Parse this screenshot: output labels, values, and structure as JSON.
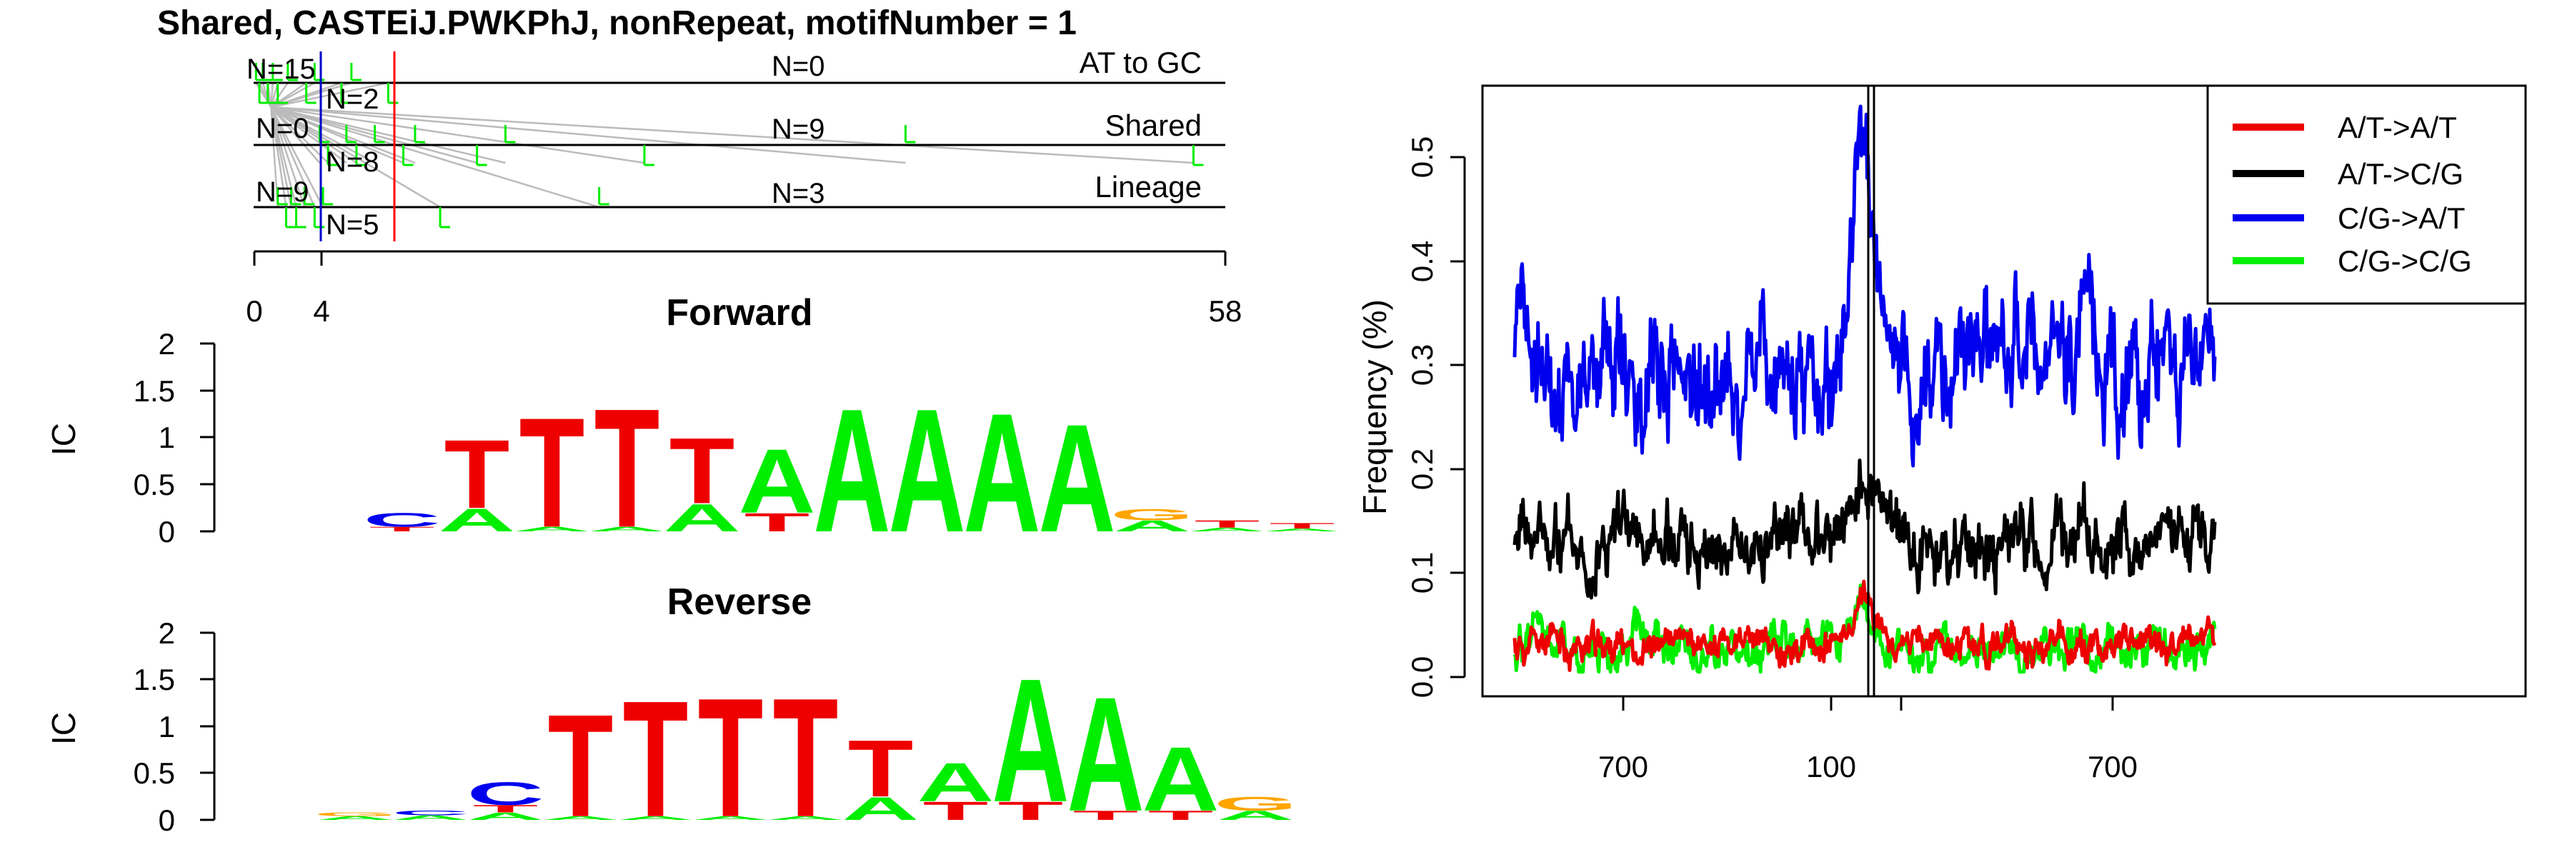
{
  "title": "Shared, CASTEiJ.PWKPhJ, nonRepeat, motifNumber = 1",
  "colors": {
    "A": "#00ee00",
    "C": "#0000ee",
    "G": "#ffa500",
    "T": "#ee0000",
    "connector": "#bbbbbb",
    "red_line": "#ff0000",
    "blue_line": "#0000cc"
  },
  "top_panel": {
    "tracks": [
      {
        "label": "AT to GC",
        "n_left": "N=15",
        "n_right": "N=2",
        "n_mid": "N=0"
      },
      {
        "label": "Shared",
        "n_left": "N=0",
        "n_right": "N=8",
        "n_mid": "N=9"
      },
      {
        "label": "Lineage",
        "n_left": "N=9",
        "n_right": "N=5",
        "n_mid": "N=3"
      }
    ],
    "axis": {
      "ticks": [
        "0",
        "4",
        "58"
      ],
      "min": 0,
      "max": 58,
      "tick_values": [
        0,
        4,
        58
      ]
    },
    "vlines": {
      "blue": 4,
      "red": 8.3
    },
    "marks": [
      [
        0.1,
        0.3,
        0.5,
        0.8,
        1.1,
        1.4,
        2.0,
        3.1,
        3.6,
        5.2,
        5.8,
        8.0
      ],
      [
        3.9,
        4.4,
        5.5,
        6.1,
        7.2,
        8.9,
        9.6,
        13.3,
        15.0,
        23.3,
        38.9,
        56.1
      ],
      [
        1.4,
        1.9,
        2.2,
        2.5,
        3.0,
        3.6,
        4.1,
        11.1,
        20.6
      ]
    ]
  },
  "logos": [
    {
      "title": "Forward",
      "ylabel": "IC",
      "yticks": [
        "2",
        "1.5",
        "1",
        "0.5",
        "0"
      ],
      "ymax": 2,
      "columns": [
        [
          [
            "T",
            0.05
          ],
          [
            "C",
            0.15
          ]
        ],
        [
          [
            "A",
            0.25
          ],
          [
            "T",
            0.75
          ]
        ],
        [
          [
            "A",
            0.05
          ],
          [
            "T",
            1.2
          ]
        ],
        [
          [
            "A",
            0.05
          ],
          [
            "T",
            1.3
          ]
        ],
        [
          [
            "A",
            0.3
          ],
          [
            "T",
            0.72
          ]
        ],
        [
          [
            "T",
            0.2
          ],
          [
            "A",
            0.7
          ]
        ],
        [
          [
            "A",
            1.35
          ]
        ],
        [
          [
            "A",
            1.35
          ]
        ],
        [
          [
            "A",
            1.3
          ]
        ],
        [
          [
            "A",
            1.18
          ]
        ],
        [
          [
            "A",
            0.12
          ],
          [
            "G",
            0.12
          ]
        ],
        [
          [
            "A",
            0.04
          ],
          [
            "T",
            0.08
          ]
        ],
        [
          [
            "A",
            0.03
          ],
          [
            "T",
            0.06
          ]
        ]
      ]
    },
    {
      "title": "Reverse",
      "ylabel": "IC",
      "yticks": [
        "2",
        "1.5",
        "1",
        "0.5",
        "0"
      ],
      "ymax": 2,
      "columns": [
        [
          [
            "A",
            0.04
          ],
          [
            "G",
            0.04
          ]
        ],
        [
          [
            "A",
            0.05
          ],
          [
            "C",
            0.05
          ]
        ],
        [
          [
            "A",
            0.08
          ],
          [
            "T",
            0.08
          ],
          [
            "C",
            0.25
          ]
        ],
        [
          [
            "A",
            0.04
          ],
          [
            "T",
            1.12
          ]
        ],
        [
          [
            "A",
            0.04
          ],
          [
            "T",
            1.27
          ]
        ],
        [
          [
            "A",
            0.04
          ],
          [
            "T",
            1.3
          ]
        ],
        [
          [
            "A",
            0.04
          ],
          [
            "T",
            1.3
          ]
        ],
        [
          [
            "A",
            0.25
          ],
          [
            "T",
            0.62
          ]
        ],
        [
          [
            "T",
            0.2
          ],
          [
            "A",
            0.42
          ]
        ],
        [
          [
            "T",
            0.2
          ],
          [
            "A",
            1.35
          ]
        ],
        [
          [
            "T",
            0.1
          ],
          [
            "A",
            1.25
          ]
        ],
        [
          [
            "T",
            0.1
          ],
          [
            "A",
            0.7
          ]
        ],
        [
          [
            "A",
            0.1
          ],
          [
            "G",
            0.15
          ]
        ]
      ]
    }
  ],
  "chart_data": {
    "type": "line",
    "ylabel": "Frequency (%)",
    "xlabel": "",
    "x_tick_labels": [
      "700",
      "100",
      "700"
    ],
    "yticks": [
      "0.0",
      "0.1",
      "0.2",
      "0.3",
      "0.4",
      "0.5"
    ],
    "ylim": [
      0,
      0.55
    ],
    "n_positions": 841,
    "center_position": 420,
    "legend_position": "top-right",
    "series": [
      {
        "name": "A/T->A/T",
        "color": "#ee0000",
        "mean": 0.03,
        "amp": 0.02,
        "peak": 0.05,
        "seed": 11
      },
      {
        "name": "A/T->C/G",
        "color": "#000000",
        "mean": 0.13,
        "amp": 0.04,
        "peak": 0.06,
        "seed": 23
      },
      {
        "name": "C/G->A/T",
        "color": "#0000ee",
        "mean": 0.29,
        "amp": 0.07,
        "peak": 0.23,
        "seed": 37
      },
      {
        "name": "C/G->C/G",
        "color": "#00ee00",
        "mean": 0.03,
        "amp": 0.025,
        "peak": 0.03,
        "seed": 51
      }
    ]
  }
}
